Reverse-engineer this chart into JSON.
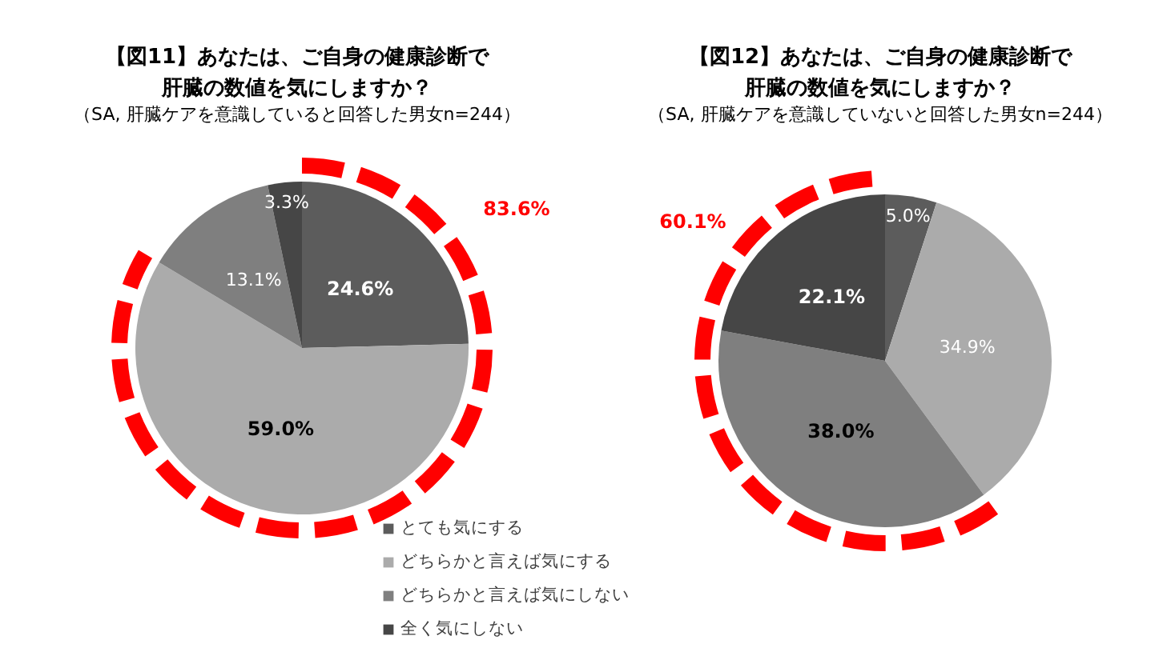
{
  "chart_data": [
    {
      "type": "pie",
      "title": "【図11】あなたは、ご自身の健康診断で肝臓の数値を気にしますか？",
      "subtitle": "（SA, 肝臓ケアを意識していると回答した男女n=244）",
      "categories": [
        "とても気にする",
        "どちらかと言えば気にする",
        "どちらかと言えば気にしない",
        "全く気にしない"
      ],
      "values": [
        24.6,
        59.0,
        13.1,
        3.3
      ],
      "colors": [
        "#5c5c5c",
        "#ababab",
        "#7f7f7f",
        "#464646"
      ],
      "value_labels": [
        "24.6%",
        "59.0%",
        "13.1%",
        "3.3%"
      ],
      "annotations": [
        "83.6%"
      ],
      "legend": "bottom right"
    },
    {
      "type": "pie",
      "title": "【図12】あなたは、ご自身の健康診断で肝臓の数値を気にしますか？",
      "subtitle": "（SA, 肝臓ケアを意識していないと回答した男女n=244）",
      "categories": [
        null,
        null,
        null,
        null
      ],
      "values": [
        5.0,
        34.9,
        38.0,
        22.1
      ],
      "colors": [
        "#5c5c5c",
        "#ababab",
        "#7f7f7f",
        "#464646"
      ],
      "value_labels": [
        "5.0%",
        "34.9%",
        "38.0%",
        "22.1%"
      ],
      "annotations": [
        "60.1%"
      ]
    }
  ]
}
